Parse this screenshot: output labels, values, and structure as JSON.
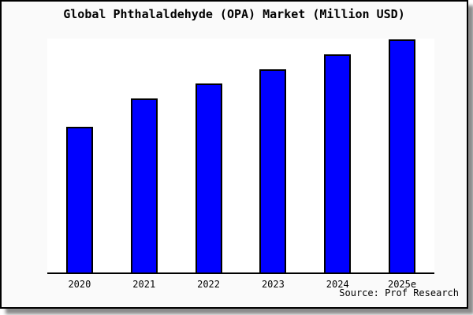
{
  "figure": {
    "title": "Global Phthalaldehyde (OPA) Market (Million USD)",
    "source": "Source: Prof Research",
    "background": "#fafafa",
    "border_color": "#000000",
    "shadow_color": "#8c8c8c"
  },
  "chart_data": {
    "type": "bar",
    "title": "Global Phthalaldehyde (OPA) Market (Million USD)",
    "categories": [
      "2020",
      "2021",
      "2022",
      "2023",
      "2024",
      "2025e"
    ],
    "values": [
      186,
      223,
      242,
      260,
      279,
      298
    ],
    "xlabel": "",
    "ylabel": "",
    "ylim": [
      0,
      299
    ],
    "grid": false,
    "legend": false,
    "bar_color": "#0000ff",
    "bar_border_color": "#000000",
    "plot_background": "#ffffff",
    "annotation": "Source: Prof Research",
    "note": "No y-axis, ticks, gridlines or value labels are shown; values are relative bar heights read from the image (pixels above the x-axis)."
  }
}
